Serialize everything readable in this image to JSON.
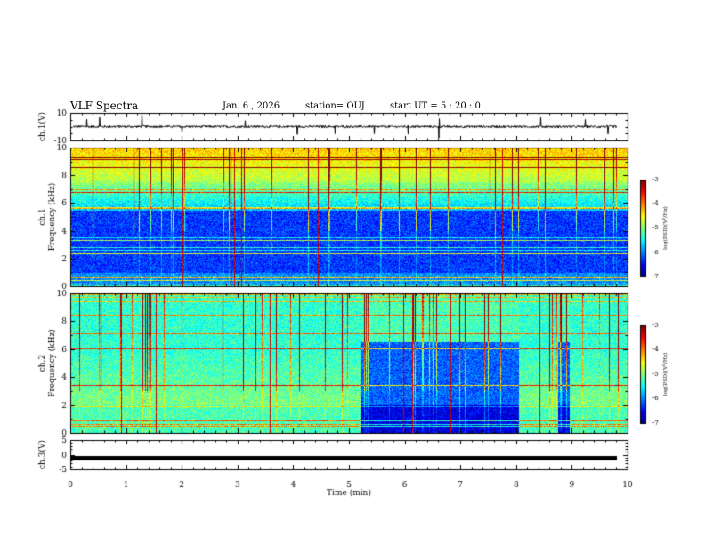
{
  "header": {
    "title": "VLF Spectra",
    "date": "Jan. 6 , 2026",
    "station": "station= OUJ",
    "start": "start UT = 5 : 20 : 0"
  },
  "colors": {
    "background": "#ffffff",
    "axis": "#000000",
    "waveform": "#000000"
  },
  "chart_data": [
    {
      "type": "line",
      "name": "ch1-waveform",
      "ylabel": "ch.1(V)",
      "ylim": [
        -10,
        10
      ],
      "yticks": [
        10,
        -10
      ],
      "baseline": 0,
      "description_values": "noisy signal around 0 V with sparse spikes"
    },
    {
      "type": "heatmap",
      "name": "ch1-spectrogram",
      "ylabel_line1": "ch.1",
      "ylabel_line2": "Frequency (kHz)",
      "ylim": [
        0,
        10
      ],
      "yticks": [
        0,
        2,
        4,
        6,
        8,
        10
      ],
      "colorbar": {
        "label": "log(PSD)(V²/Hz)",
        "range": [
          -7,
          -3
        ],
        "ticks": [
          "-3",
          "-4",
          "-5",
          "-6",
          "-7"
        ]
      },
      "quiet_intervals_min": []
    },
    {
      "type": "heatmap",
      "name": "ch2-spectrogram",
      "ylabel_line1": "ch.2",
      "ylabel_line2": "Frequency (kHz)",
      "ylim": [
        0,
        10
      ],
      "yticks": [
        0,
        2,
        4,
        6,
        8,
        10
      ],
      "colorbar": {
        "label": "log(PSD)(V²/Hz)",
        "range": [
          -7,
          -3
        ],
        "ticks": [
          "-3",
          "-4",
          "-5",
          "-6",
          "-7"
        ]
      },
      "quiet_intervals_min": [
        [
          5.2,
          8.05
        ],
        [
          8.75,
          8.95
        ]
      ]
    },
    {
      "type": "line",
      "name": "ch3-waveform",
      "ylabel": "ch.3(V)",
      "ylim": [
        -5,
        5
      ],
      "yticks": [
        5,
        0,
        -5
      ],
      "constant_value": -1
    }
  ],
  "xaxis": {
    "label": "Time (min)",
    "xlim": [
      0,
      10
    ],
    "ticks": [
      "0",
      "1",
      "2",
      "3",
      "4",
      "5",
      "6",
      "7",
      "8",
      "9",
      "10"
    ]
  }
}
